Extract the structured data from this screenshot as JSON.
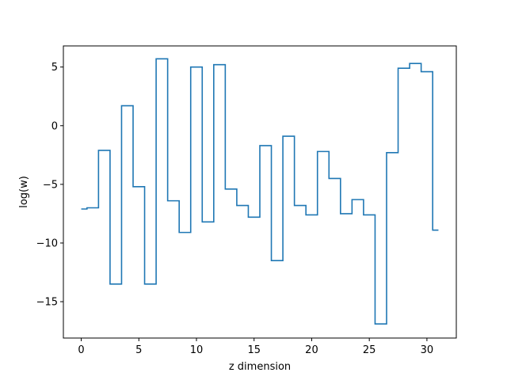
{
  "chart_data": {
    "type": "line",
    "drawstyle": "steps-mid",
    "xlabel": "z dimension",
    "ylabel": "log(w)",
    "xlim": [
      -1.55,
      32.55
    ],
    "ylim": [
      -18.1,
      6.8
    ],
    "xticks": [
      0,
      5,
      10,
      15,
      20,
      25,
      30
    ],
    "yticks": [
      5,
      0,
      -5,
      -10,
      -15
    ],
    "ytick_labels": [
      "5",
      "0",
      "−5",
      "−10",
      "−15"
    ],
    "grid": false,
    "line_color": "#1f77b4",
    "x": [
      0,
      1,
      2,
      3,
      4,
      5,
      6,
      7,
      8,
      9,
      10,
      11,
      12,
      13,
      14,
      15,
      16,
      17,
      18,
      19,
      20,
      21,
      22,
      23,
      24,
      25,
      26,
      27,
      28,
      29,
      30,
      31
    ],
    "y": [
      -7.1,
      -7.0,
      -2.1,
      -13.5,
      1.7,
      -5.2,
      -13.5,
      5.7,
      -6.4,
      -9.1,
      5.0,
      -8.2,
      5.2,
      -5.4,
      -6.8,
      -7.8,
      -1.7,
      -11.5,
      -0.9,
      -6.8,
      -7.6,
      -2.2,
      -4.5,
      -7.5,
      -6.3,
      -7.6,
      -16.9,
      -2.3,
      4.9,
      5.3,
      4.6,
      -8.9
    ]
  }
}
